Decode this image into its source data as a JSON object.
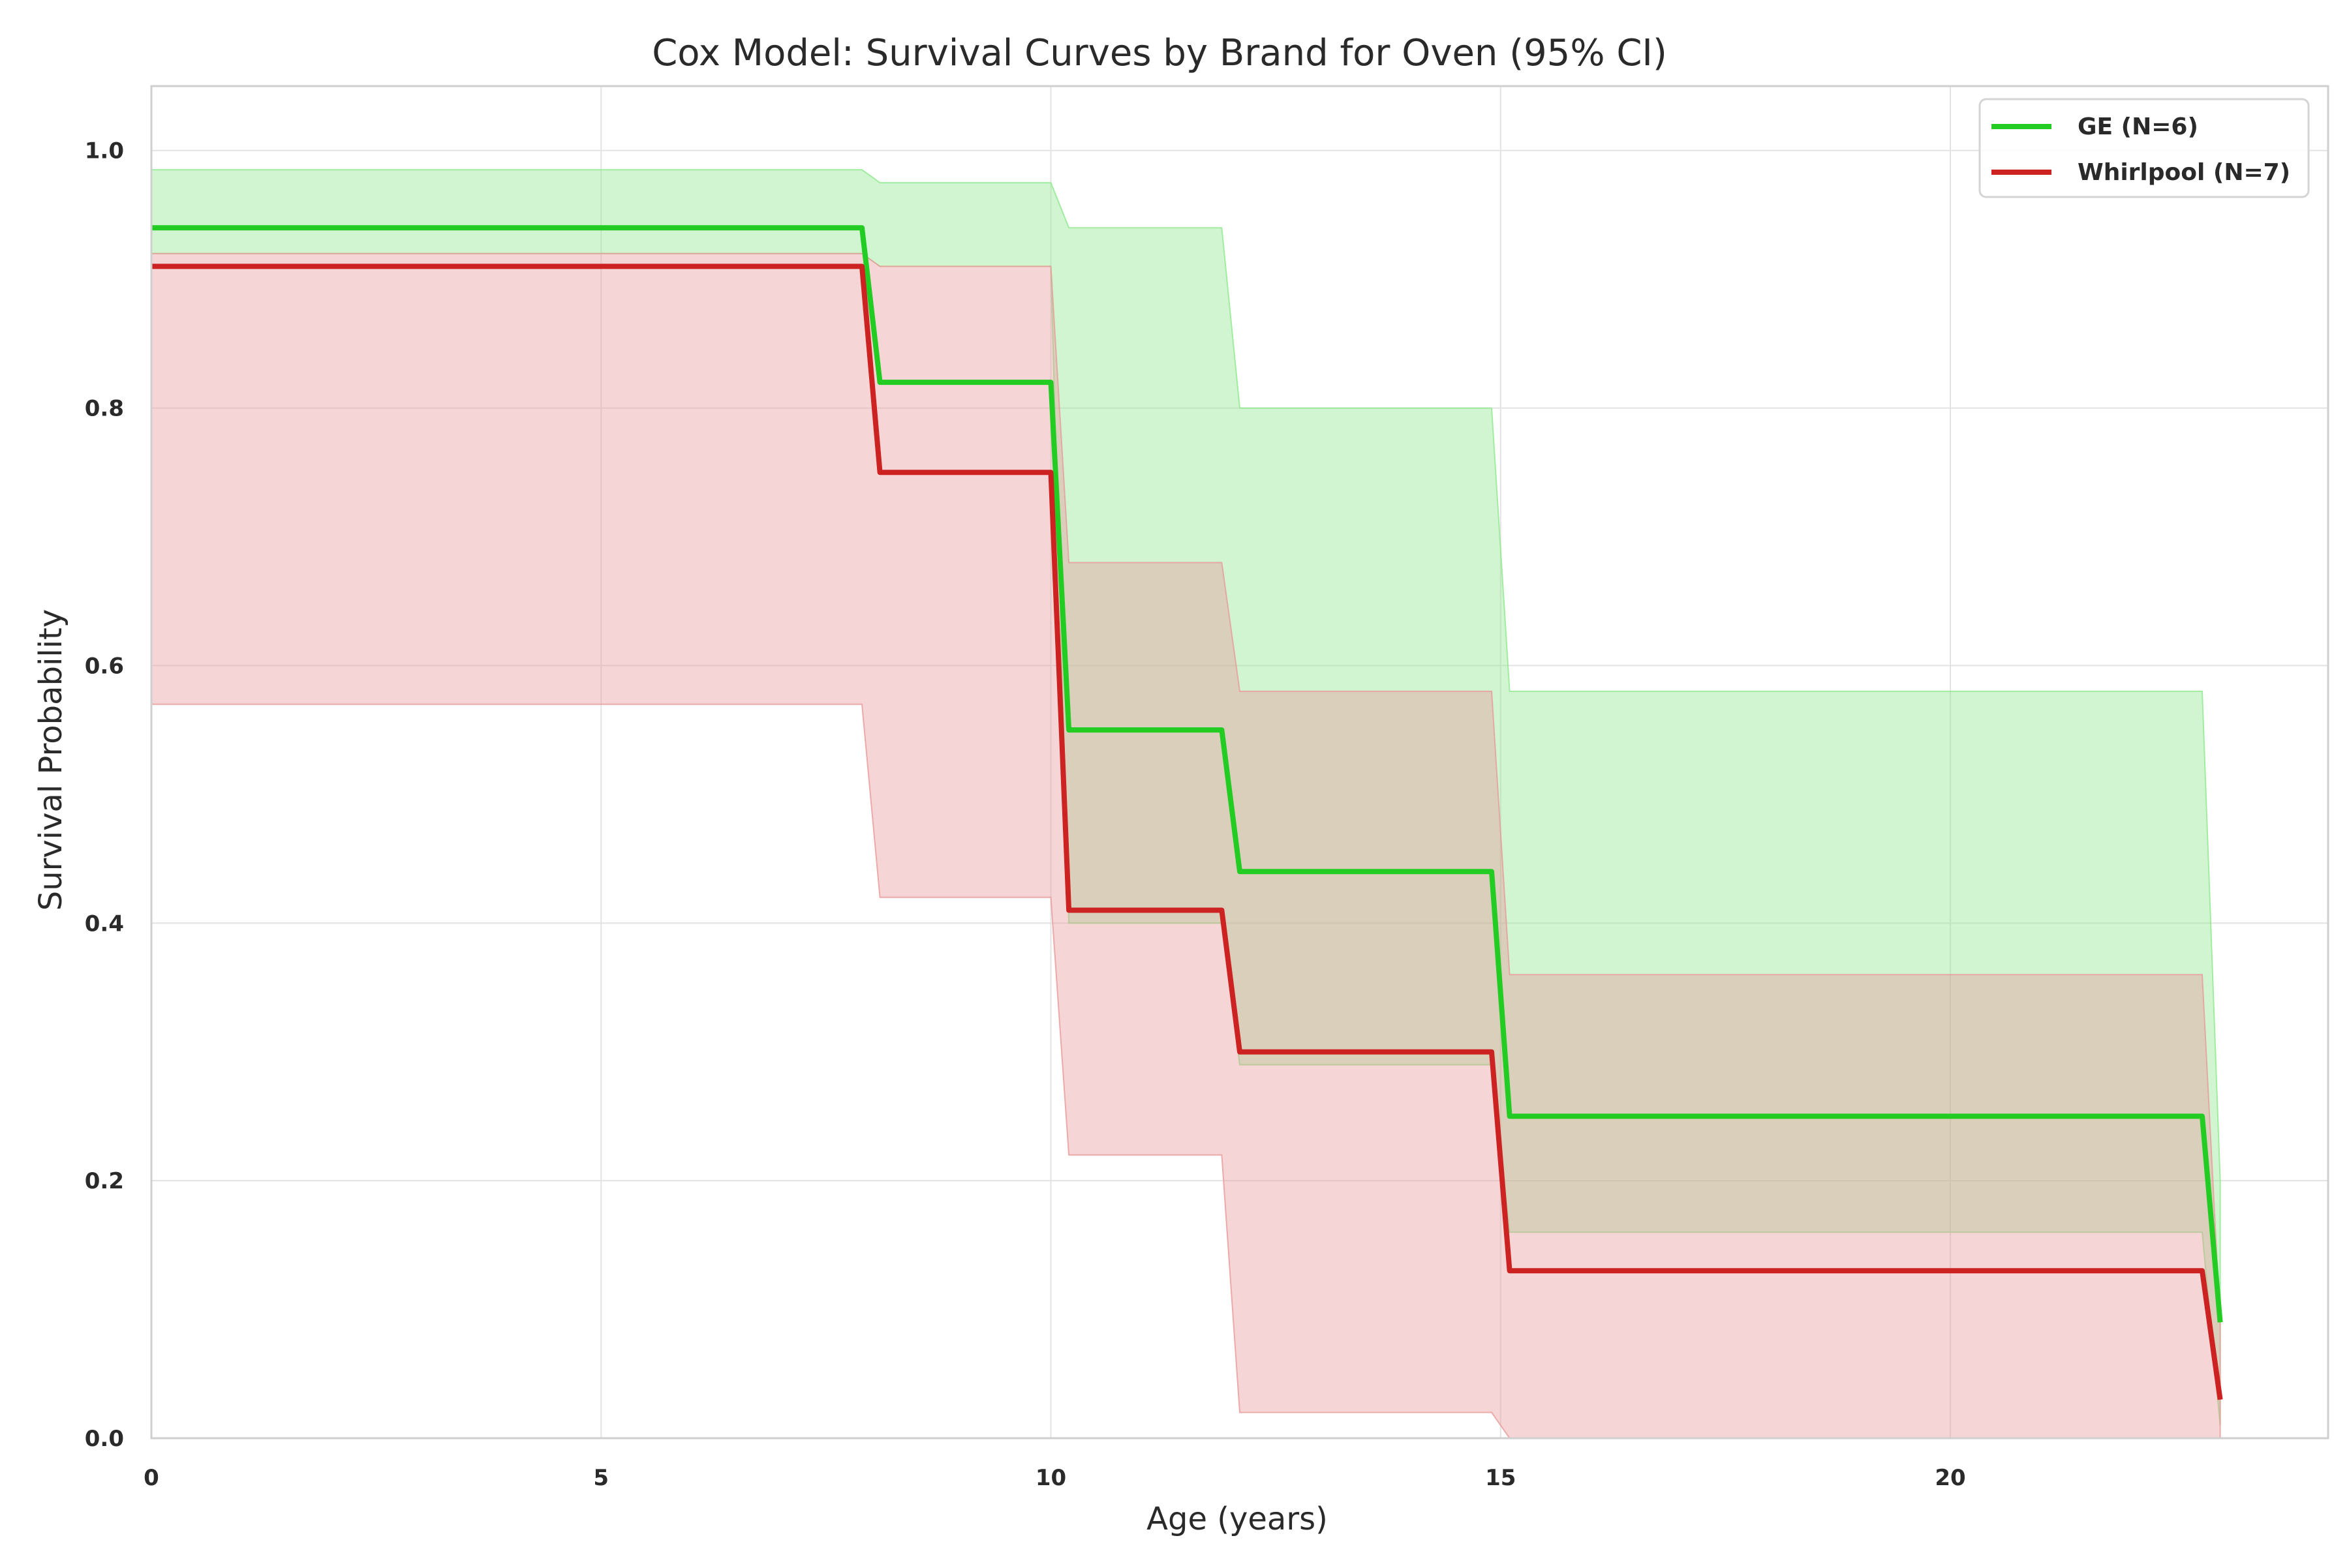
{
  "chart_data": {
    "type": "line",
    "title": "Cox Model: Survival Curves by Brand for Oven (95% CI)",
    "xlabel": "Age (years)",
    "ylabel": "Survival Probability",
    "xlim": [
      0,
      24.2
    ],
    "ylim": [
      0,
      1.05
    ],
    "xticks": [
      0,
      5,
      10,
      15,
      20
    ],
    "xtick_labels": [
      "0",
      "5",
      "10",
      "15",
      "20"
    ],
    "yticks": [
      0.0,
      0.2,
      0.4,
      0.6,
      0.8,
      1.0
    ],
    "ytick_labels": [
      "0.0",
      "0.2",
      "0.4",
      "0.6",
      "0.8",
      "1.0"
    ],
    "grid": true,
    "legend_position": "top-right",
    "series": [
      {
        "name": "GE (N=6)",
        "color": "#22cc22",
        "band_color": "#90e890",
        "x": [
          0,
          7.9,
          8.1,
          10.0,
          10.2,
          11.9,
          12.1,
          14.9,
          15.1,
          22.8,
          23.0
        ],
        "y": [
          0.94,
          0.94,
          0.82,
          0.82,
          0.55,
          0.55,
          0.44,
          0.44,
          0.25,
          0.25,
          0.09
        ],
        "lower": [
          0.92,
          0.92,
          0.91,
          0.91,
          0.4,
          0.4,
          0.29,
          0.29,
          0.16,
          0.16,
          0.01
        ],
        "upper": [
          0.985,
          0.985,
          0.975,
          0.975,
          0.94,
          0.94,
          0.8,
          0.8,
          0.58,
          0.58,
          0.2
        ]
      },
      {
        "name": "Whirlpool (N=7)",
        "color": "#cc2222",
        "band_color": "#e89a9a",
        "x": [
          0,
          7.9,
          8.1,
          10.0,
          10.2,
          11.9,
          12.1,
          14.9,
          15.1,
          22.8,
          23.0
        ],
        "y": [
          0.91,
          0.91,
          0.75,
          0.75,
          0.41,
          0.41,
          0.3,
          0.3,
          0.13,
          0.13,
          0.03
        ],
        "lower": [
          0.57,
          0.57,
          0.42,
          0.42,
          0.22,
          0.22,
          0.02,
          0.02,
          0.0,
          0.0,
          0.0
        ],
        "upper": [
          0.92,
          0.92,
          0.91,
          0.91,
          0.68,
          0.68,
          0.58,
          0.58,
          0.36,
          0.36,
          0.09
        ]
      }
    ]
  }
}
